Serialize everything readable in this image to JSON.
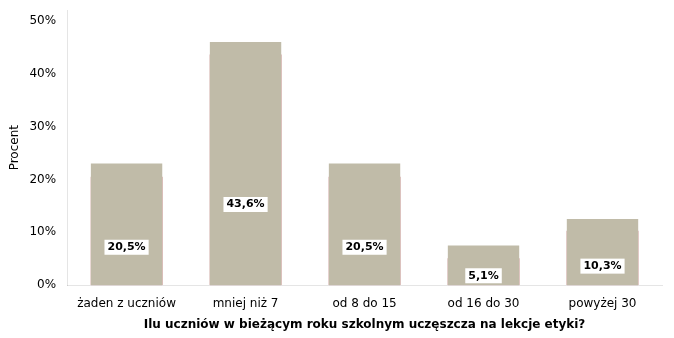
{
  "chart_data": {
    "type": "bar",
    "categories": [
      "żaden z uczniów",
      "mniej niż 7",
      "od 8 do 15",
      "od 16 do 30",
      "powyżej 30"
    ],
    "series": [
      {
        "color": "#C0BBA8",
        "values": [
          23.0,
          46.0,
          23.0,
          7.5,
          12.5
        ]
      },
      {
        "color": "#8B0000",
        "values": [
          20.5,
          43.6,
          20.5,
          5.1,
          10.3
        ],
        "data_labels": true,
        "value_labels": [
          "20,5%",
          "43,6%",
          "20,5%",
          "5,1%",
          "10,3%"
        ]
      }
    ],
    "xlabel": "Ilu uczniów w bieżącym roku szkolnym uczęszcza na lekcje etyki?",
    "ylabel": "Procent",
    "ylim": [
      0,
      52
    ],
    "yticks": [
      {
        "value": 0,
        "label": "0%"
      },
      {
        "value": 10,
        "label": "10%"
      },
      {
        "value": 20,
        "label": "20%"
      },
      {
        "value": 30,
        "label": "30%"
      },
      {
        "value": 40,
        "label": "40%"
      },
      {
        "value": 50,
        "label": "50%"
      }
    ],
    "grid": false
  }
}
